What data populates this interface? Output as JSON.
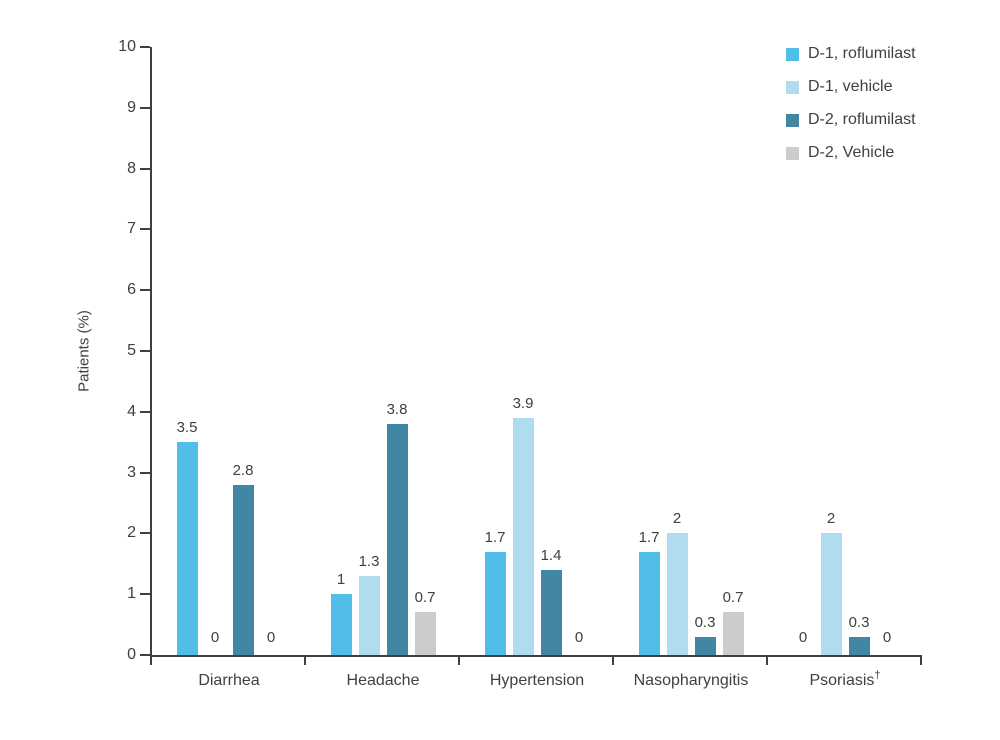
{
  "chart_data": {
    "type": "bar",
    "title": "",
    "xlabel": "",
    "ylabel": "Patients (%)",
    "ylim": [
      0,
      10
    ],
    "yticks": [
      "0",
      "1",
      "2",
      "3",
      "4",
      "5",
      "6",
      "7",
      "8",
      "9",
      "10"
    ],
    "grid": false,
    "legend_position": "top-right",
    "categories": [
      {
        "label": "Diarrhea",
        "superscript": ""
      },
      {
        "label": "Headache",
        "superscript": ""
      },
      {
        "label": "Hypertension",
        "superscript": ""
      },
      {
        "label": "Nasopharyngitis",
        "superscript": ""
      },
      {
        "label": "Psoriasis",
        "superscript": "†"
      }
    ],
    "series": [
      {
        "name": "D-1, roflumilast",
        "color": "#51BEE9",
        "values": [
          3.5,
          1,
          1.7,
          1.7,
          0
        ]
      },
      {
        "name": "D-1, vehicle",
        "color": "#AFDCEE",
        "values": [
          0,
          1.3,
          3.9,
          2,
          2
        ]
      },
      {
        "name": "D-2, roflumilast",
        "color": "#4187A3",
        "values": [
          2.8,
          3.8,
          1.4,
          0.3,
          0.3
        ]
      },
      {
        "name": "D-2, Vehicle",
        "color": "#CBCCCD",
        "values": [
          0,
          0.7,
          0,
          0.7,
          0
        ]
      }
    ],
    "value_labels_shown": true,
    "colors": {
      "axis": "#3F3F3F",
      "text": "#404040",
      "background": "#FFFFFF"
    }
  }
}
